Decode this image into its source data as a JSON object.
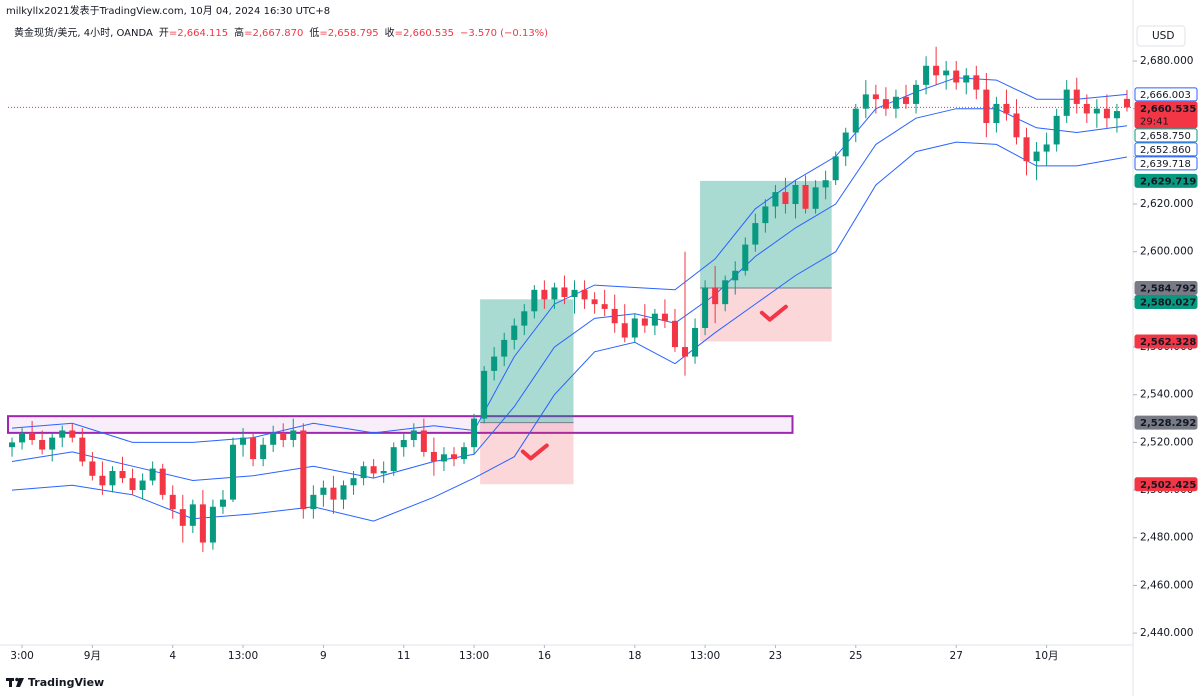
{
  "header": {
    "publisher": "milkyllx2021发表于TradingView.com, 10月 04, 2024 16:30 UTC+8",
    "symbol": "黄金现货/美元, 4小时, OANDA",
    "ohlc": [
      {
        "label": "开",
        "value": "=2,664.115"
      },
      {
        "label": "高",
        "value": "=2,667.870"
      },
      {
        "label": "低",
        "value": "=2,658.795"
      },
      {
        "label": "收",
        "value": "=2,660.535"
      }
    ],
    "change": "−3.570 (−0.13%)",
    "currency": "USD"
  },
  "footer": {
    "brand": "TradingView"
  },
  "chart_data": {
    "type": "candlestick",
    "up_color": "#089981",
    "down_color": "#f23645",
    "xlim": [
      -0.4,
      111.6
    ],
    "ylim": [
      2435,
      2705.6
    ],
    "grid": false,
    "xticks": [
      {
        "value": 1,
        "label": "3:00"
      },
      {
        "value": 8,
        "label": "9月"
      },
      {
        "value": 16,
        "label": "4"
      },
      {
        "value": 23,
        "label": "13:00"
      },
      {
        "value": 31,
        "label": "9"
      },
      {
        "value": 39,
        "label": "11"
      },
      {
        "value": 46,
        "label": "13:00"
      },
      {
        "value": 53,
        "label": "16"
      },
      {
        "value": 62,
        "label": "18"
      },
      {
        "value": 69,
        "label": "13:00"
      },
      {
        "value": 76,
        "label": "23"
      },
      {
        "value": 84,
        "label": "25"
      },
      {
        "value": 94,
        "label": "27"
      },
      {
        "value": 103,
        "label": "10月"
      }
    ],
    "yticks": [
      {
        "value": 2440,
        "label": "2,440.000"
      },
      {
        "value": 2460,
        "label": "2,460.000"
      },
      {
        "value": 2480,
        "label": "2,480.000"
      },
      {
        "value": 2500,
        "label": "2,500.000"
      },
      {
        "value": 2520,
        "label": "2,520.000"
      },
      {
        "value": 2540,
        "label": "2,540.000"
      },
      {
        "value": 2560,
        "label": "2,560.000"
      },
      {
        "value": 2580,
        "label": "2,580.000"
      },
      {
        "value": 2600,
        "label": "2,600.000"
      },
      {
        "value": 2620,
        "label": "2,620.000"
      },
      {
        "value": 2640,
        "label": "2,640.000"
      },
      {
        "value": 2660,
        "label": "2,660.000"
      },
      {
        "value": 2680,
        "label": "2,680.000"
      }
    ],
    "ohlc": [
      [
        2518,
        2522,
        2514,
        2520
      ],
      [
        2520,
        2526,
        2517,
        2524
      ],
      [
        2524,
        2529,
        2519,
        2521
      ],
      [
        2521,
        2525,
        2515,
        2517
      ],
      [
        2517,
        2524,
        2512,
        2522
      ],
      [
        2522,
        2527,
        2518,
        2525
      ],
      [
        2525,
        2528,
        2520,
        2522
      ],
      [
        2522,
        2526,
        2510,
        2512
      ],
      [
        2512,
        2516,
        2504,
        2506
      ],
      [
        2506,
        2512,
        2498,
        2502
      ],
      [
        2502,
        2510,
        2499,
        2508
      ],
      [
        2508,
        2514,
        2503,
        2505
      ],
      [
        2505,
        2509,
        2498,
        2500
      ],
      [
        2500,
        2507,
        2496,
        2504
      ],
      [
        2504,
        2512,
        2502,
        2509
      ],
      [
        2509,
        2511,
        2496,
        2498
      ],
      [
        2498,
        2502,
        2488,
        2492
      ],
      [
        2492,
        2498,
        2478,
        2485
      ],
      [
        2485,
        2496,
        2482,
        2494
      ],
      [
        2494,
        2500,
        2474,
        2478
      ],
      [
        2478,
        2496,
        2475,
        2493
      ],
      [
        2493,
        2500,
        2490,
        2496
      ],
      [
        2496,
        2522,
        2495,
        2519
      ],
      [
        2519,
        2526,
        2514,
        2522
      ],
      [
        2522,
        2524,
        2510,
        2513
      ],
      [
        2513,
        2522,
        2510,
        2519
      ],
      [
        2519,
        2527,
        2516,
        2524
      ],
      [
        2524,
        2528,
        2518,
        2521
      ],
      [
        2521,
        2530,
        2518,
        2525
      ],
      [
        2525,
        2528,
        2488,
        2492
      ],
      [
        2492,
        2502,
        2488,
        2498
      ],
      [
        2498,
        2504,
        2493,
        2501
      ],
      [
        2501,
        2506,
        2490,
        2496
      ],
      [
        2496,
        2504,
        2492,
        2502
      ],
      [
        2502,
        2508,
        2498,
        2505
      ],
      [
        2505,
        2512,
        2502,
        2510
      ],
      [
        2510,
        2513,
        2505,
        2507
      ],
      [
        2507,
        2512,
        2503,
        2508
      ],
      [
        2508,
        2520,
        2506,
        2518
      ],
      [
        2518,
        2524,
        2514,
        2521
      ],
      [
        2521,
        2528,
        2518,
        2525
      ],
      [
        2525,
        2530,
        2514,
        2516
      ],
      [
        2516,
        2522,
        2506,
        2512
      ],
      [
        2512,
        2518,
        2508,
        2515
      ],
      [
        2515,
        2518,
        2510,
        2513
      ],
      [
        2513,
        2520,
        2511,
        2518
      ],
      [
        2518,
        2532,
        2515,
        2530
      ],
      [
        2530,
        2552,
        2528,
        2550
      ],
      [
        2550,
        2560,
        2546,
        2556
      ],
      [
        2556,
        2566,
        2552,
        2563
      ],
      [
        2563,
        2572,
        2559,
        2569
      ],
      [
        2569,
        2578,
        2565,
        2575
      ],
      [
        2575,
        2586,
        2572,
        2584
      ],
      [
        2584,
        2588,
        2576,
        2580
      ],
      [
        2580,
        2587,
        2576,
        2585
      ],
      [
        2585,
        2590,
        2578,
        2581
      ],
      [
        2581,
        2588,
        2574,
        2584
      ],
      [
        2584,
        2588,
        2576,
        2580
      ],
      [
        2580,
        2583,
        2574,
        2578
      ],
      [
        2578,
        2584,
        2573,
        2576
      ],
      [
        2576,
        2582,
        2566,
        2570
      ],
      [
        2570,
        2578,
        2562,
        2564
      ],
      [
        2564,
        2574,
        2562,
        2572
      ],
      [
        2572,
        2578,
        2566,
        2569
      ],
      [
        2569,
        2576,
        2565,
        2574
      ],
      [
        2574,
        2580,
        2568,
        2571
      ],
      [
        2571,
        2576,
        2558,
        2560
      ],
      [
        2560,
        2600,
        2548,
        2556
      ],
      [
        2556,
        2572,
        2553,
        2568
      ],
      [
        2568,
        2588,
        2565,
        2585
      ],
      [
        2585,
        2594,
        2570,
        2578
      ],
      [
        2578,
        2590,
        2575,
        2588
      ],
      [
        2588,
        2596,
        2582,
        2592
      ],
      [
        2592,
        2606,
        2590,
        2603
      ],
      [
        2603,
        2616,
        2600,
        2612
      ],
      [
        2612,
        2622,
        2608,
        2619
      ],
      [
        2619,
        2628,
        2614,
        2625
      ],
      [
        2625,
        2631,
        2616,
        2620
      ],
      [
        2620,
        2630,
        2614,
        2628
      ],
      [
        2628,
        2632,
        2616,
        2618
      ],
      [
        2618,
        2630,
        2616,
        2627
      ],
      [
        2627,
        2634,
        2622,
        2630
      ],
      [
        2630,
        2642,
        2628,
        2640
      ],
      [
        2640,
        2652,
        2636,
        2650
      ],
      [
        2650,
        2662,
        2646,
        2660
      ],
      [
        2660,
        2672,
        2656,
        2666
      ],
      [
        2666,
        2670,
        2658,
        2664
      ],
      [
        2664,
        2669,
        2657,
        2660
      ],
      [
        2660,
        2668,
        2656,
        2665
      ],
      [
        2665,
        2670,
        2660,
        2662
      ],
      [
        2662,
        2672,
        2658,
        2670
      ],
      [
        2670,
        2682,
        2666,
        2678
      ],
      [
        2678,
        2686,
        2670,
        2674
      ],
      [
        2674,
        2680,
        2668,
        2676
      ],
      [
        2676,
        2680,
        2668,
        2671
      ],
      [
        2671,
        2677,
        2666,
        2674
      ],
      [
        2674,
        2678,
        2664,
        2668
      ],
      [
        2668,
        2675,
        2648,
        2654
      ],
      [
        2654,
        2665,
        2650,
        2662
      ],
      [
        2662,
        2668,
        2655,
        2658
      ],
      [
        2658,
        2664,
        2645,
        2648
      ],
      [
        2648,
        2652,
        2632,
        2638
      ],
      [
        2638,
        2646,
        2630,
        2642
      ],
      [
        2642,
        2650,
        2636,
        2645
      ],
      [
        2645,
        2660,
        2642,
        2657
      ],
      [
        2657,
        2672,
        2654,
        2668
      ],
      [
        2668,
        2673,
        2658,
        2662
      ],
      [
        2662,
        2666,
        2654,
        2658
      ],
      [
        2658,
        2664,
        2652,
        2660
      ],
      [
        2660,
        2666,
        2652,
        2656
      ],
      [
        2656,
        2662,
        2650,
        2659
      ],
      [
        2664.115,
        2667.87,
        2658.795,
        2660.535
      ]
    ],
    "bands": {
      "color": "#2962ff",
      "x": [
        0,
        6,
        12,
        18,
        24,
        30,
        36,
        42,
        46,
        50,
        54,
        58,
        62,
        66,
        70,
        74,
        78,
        82,
        86,
        90,
        94,
        98,
        102,
        106,
        111
      ],
      "upper": [
        2526,
        2528,
        2520,
        2520,
        2522,
        2528,
        2524,
        2527,
        2525,
        2556,
        2578,
        2586,
        2585,
        2584,
        2597,
        2618,
        2630,
        2640,
        2660,
        2667,
        2673,
        2672,
        2664,
        2664,
        2666.003
      ],
      "middle": [
        2512,
        2516,
        2510,
        2504,
        2506,
        2510,
        2505,
        2512,
        2515,
        2535,
        2560,
        2572,
        2574,
        2570,
        2582,
        2598,
        2610,
        2620,
        2645,
        2656,
        2660,
        2660,
        2652,
        2650,
        2652.86
      ],
      "lower": [
        2500,
        2502,
        2498,
        2488,
        2490,
        2493,
        2487,
        2497,
        2505,
        2514,
        2540,
        2558,
        2562,
        2553,
        2566,
        2578,
        2590,
        2600,
        2628,
        2642,
        2646,
        2645,
        2636,
        2636,
        2639.718
      ]
    },
    "zone": {
      "top": 2531,
      "bottom": 2524,
      "start": -0.4,
      "end": 77.7,
      "color": "#9c27b0"
    },
    "positions": [
      {
        "start": 46.6,
        "end": 55.9,
        "entry": 2528.292,
        "target": 2580.027,
        "stop": 2502.425
      },
      {
        "start": 68.5,
        "end": 81.6,
        "entry": 2584.792,
        "target": 2629.719,
        "stop": 2562.328
      }
    ],
    "last_price": {
      "value": 2660.535,
      "label": "2,660.535",
      "countdown": "29:41",
      "color": "#f23645"
    },
    "price_labels": [
      {
        "value": 2666.003,
        "label": "2,666.003",
        "color": "#2962ff",
        "style": "outline"
      },
      {
        "value": 2658.75,
        "label": "2,658.750",
        "color": "#089981",
        "style": "outline"
      },
      {
        "value": 2652.86,
        "label": "2,652.860",
        "color": "#2962ff",
        "style": "outline"
      },
      {
        "value": 2639.718,
        "label": "2,639.718",
        "color": "#2962ff",
        "style": "outline"
      },
      {
        "value": 2629.719,
        "label": "2,629.719",
        "color": "#089981",
        "style": "fill"
      },
      {
        "value": 2584.792,
        "label": "2,584.792",
        "color": "#787b86",
        "style": "fill"
      },
      {
        "value": 2580.027,
        "label": "2,580.027",
        "color": "#089981",
        "style": "fill"
      },
      {
        "value": 2562.328,
        "label": "2,562.328",
        "color": "#f23645",
        "style": "fill"
      },
      {
        "value": 2528.292,
        "label": "2,528.292",
        "color": "#787b86",
        "style": "fill"
      },
      {
        "value": 2502.425,
        "label": "2,502.425",
        "color": "#f23645",
        "style": "fill"
      }
    ]
  }
}
